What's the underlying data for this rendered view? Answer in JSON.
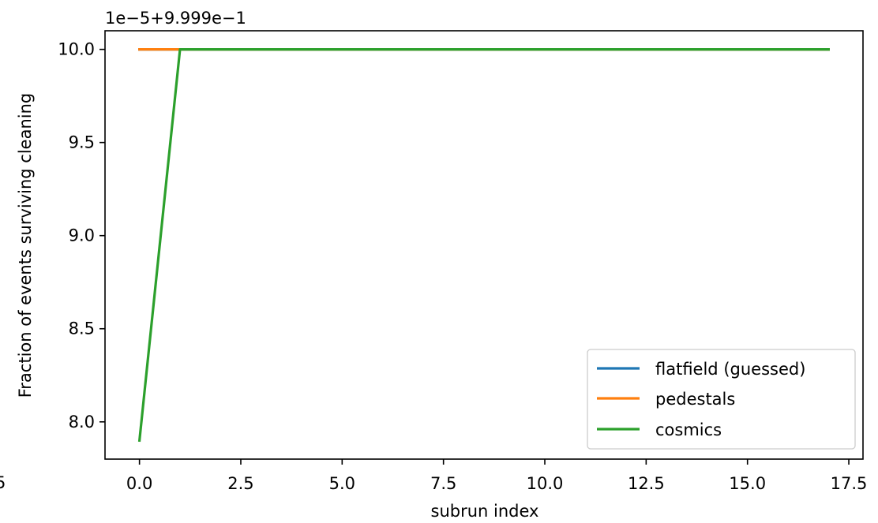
{
  "chart_data": {
    "type": "line",
    "xlabel": "subrun index",
    "ylabel": "Fraction of events surviving cleaning",
    "offset_label": "1e−5+9.999e−1",
    "xlim": [
      -0.85,
      17.85
    ],
    "ylim": [
      7.8,
      10.1
    ],
    "x_ticks": [
      0.0,
      2.5,
      5.0,
      7.5,
      10.0,
      12.5,
      15.0,
      17.5
    ],
    "x_tick_labels": [
      "0.0",
      "2.5",
      "5.0",
      "7.5",
      "10.0",
      "12.5",
      "15.0",
      "17.5"
    ],
    "y_ticks": [
      8.0,
      8.5,
      9.0,
      9.5,
      10.0
    ],
    "y_tick_labels": [
      "8.0",
      "8.5",
      "9.0",
      "9.5",
      "10.0"
    ],
    "left_cut_label": "5",
    "grid": false,
    "legend_position": "lower-right",
    "series": [
      {
        "name": "flatfield (guessed)",
        "color": "#1f77b4",
        "x": [
          0,
          1,
          2,
          3,
          4,
          5,
          6,
          7,
          8,
          9,
          10,
          11,
          12,
          13,
          14,
          15,
          16,
          17
        ],
        "y": [
          10.0,
          10.0,
          10.0,
          10.0,
          10.0,
          10.0,
          10.0,
          10.0,
          10.0,
          10.0,
          10.0,
          10.0,
          10.0,
          10.0,
          10.0,
          10.0,
          10.0,
          10.0
        ]
      },
      {
        "name": "pedestals",
        "color": "#ff7f0e",
        "x": [
          0,
          1,
          2,
          3,
          4,
          5,
          6,
          7,
          8,
          9,
          10,
          11,
          12,
          13,
          14,
          15,
          16,
          17
        ],
        "y": [
          10.0,
          10.0,
          10.0,
          10.0,
          10.0,
          10.0,
          10.0,
          10.0,
          10.0,
          10.0,
          10.0,
          10.0,
          10.0,
          10.0,
          10.0,
          10.0,
          10.0,
          10.0
        ]
      },
      {
        "name": "cosmics",
        "color": "#2ca02c",
        "x": [
          0,
          1,
          2,
          3,
          4,
          5,
          6,
          7,
          8,
          9,
          10,
          11,
          12,
          13,
          14,
          15,
          16,
          17
        ],
        "y": [
          7.9,
          10.0,
          10.0,
          10.0,
          10.0,
          10.0,
          10.0,
          10.0,
          10.0,
          10.0,
          10.0,
          10.0,
          10.0,
          10.0,
          10.0,
          10.0,
          10.0,
          10.0
        ]
      }
    ]
  }
}
